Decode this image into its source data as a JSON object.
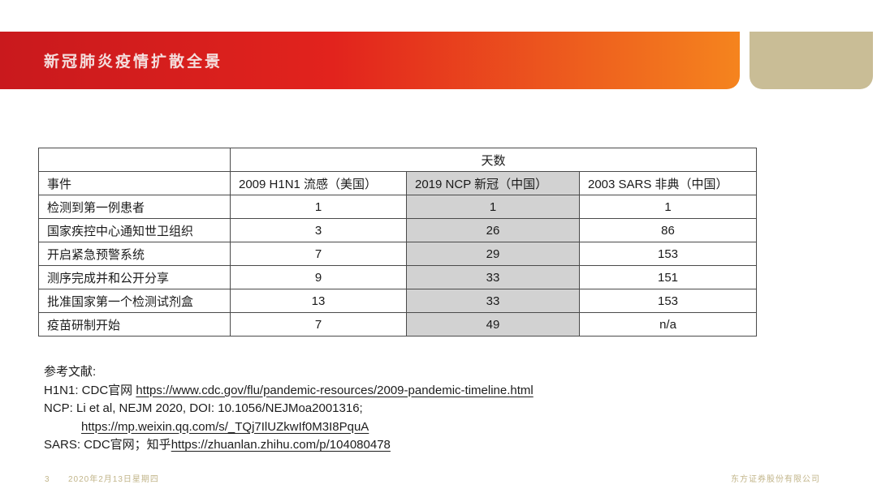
{
  "header": {
    "title": "新冠肺炎疫情扩散全景"
  },
  "table": {
    "days_header": "天数",
    "event_header": "事件",
    "columns": [
      "2009 H1N1 流感（美国）",
      "2019 NCP 新冠（中国）",
      "2003 SARS 非典（中国）"
    ],
    "rows": [
      {
        "event": "检测到第一例患者",
        "h1n1": "1",
        "ncp": "1",
        "sars": "1"
      },
      {
        "event": "国家疾控中心通知世卫组织",
        "h1n1": "3",
        "ncp": "26",
        "sars": "86"
      },
      {
        "event": "开启紧急预警系统",
        "h1n1": "7",
        "ncp": "29",
        "sars": "153"
      },
      {
        "event": "测序完成并和公开分享",
        "h1n1": "9",
        "ncp": "33",
        "sars": "151"
      },
      {
        "event": "批准国家第一个检测试剂盒",
        "h1n1": "13",
        "ncp": "33",
        "sars": "153"
      },
      {
        "event": "疫苗研制开始",
        "h1n1": "7",
        "ncp": "49",
        "sars": "n/a"
      }
    ]
  },
  "references": {
    "heading": "参考文献:",
    "h1n1_prefix": "H1N1: CDC官网 ",
    "h1n1_url": "https://www.cdc.gov/flu/pandemic-resources/2009-pandemic-timeline.html",
    "ncp_line": "NCP: Li et al, NEJM 2020, DOI: 10.1056/NEJMoa2001316;",
    "ncp_url": "https://mp.weixin.qq.com/s/_TQj7IlUZkwIf0M3I8PquA",
    "sars_prefix": "SARS: CDC官网；知乎",
    "sars_url": "https://zhuanlan.zhihu.com/p/104080478"
  },
  "footer": {
    "page_number": "3",
    "date": "2020年2月13日星期四",
    "company": "东方证券股份有限公司"
  },
  "colors": {
    "header_gradient_start": "#c9191d",
    "header_gradient_mid": "#e2231d",
    "header_gradient_end": "#f5841e",
    "tan_block": "#c9bd96",
    "highlight_column": "#d2d2d2",
    "table_border": "#4a4a4a",
    "footer_text": "#c2b58a"
  }
}
